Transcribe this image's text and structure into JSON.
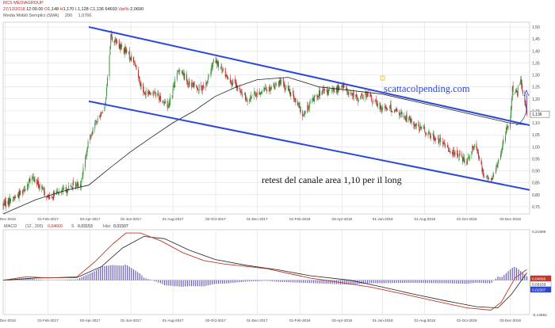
{
  "header": {
    "symbol": "RCS MEDIAGROUP",
    "date": "27/12/2018",
    "time": "12:00.00",
    "open_label": "O",
    "open": "1,148",
    "high_label": "H",
    "high": "1,170",
    "low_label": "L",
    "low": "1,128",
    "close_label": "C",
    "close": "1,136",
    "volume": "64693",
    "var_label": "Var%",
    "var": "-2,0690",
    "sma_label": "Media Mobili Semplici (SMA)",
    "sma_period": "200",
    "sma_value": "1,0766"
  },
  "annotations": {
    "watermark": "scattacolpending.com",
    "note": "retest del canale area 1,10 per il long"
  },
  "colors": {
    "up_candle": "#2e8b2e",
    "down_candle": "#b22222",
    "sma": "#222222",
    "channel": "#2c48d8",
    "macd_line": "#c0392b",
    "signal_line": "#222222",
    "histogram": "#6a5fc0",
    "grid": "#d9d9d9",
    "price_label_bg": "#ffffff"
  },
  "chart_data": [
    {
      "type": "candlestick",
      "title": "RCS MEDIAGROUP",
      "ylim": [
        0.72,
        1.52
      ],
      "yticks": [
        0.75,
        0.8,
        0.85,
        0.9,
        0.95,
        1.0,
        1.05,
        1.1,
        1.15,
        1.2,
        1.25,
        1.3,
        1.35,
        1.4,
        1.45,
        1.5
      ],
      "ytick_labels": [
        "0,75",
        "0,80",
        "0,85",
        "0,90",
        "0,95",
        "1,00",
        "1,05",
        "1,10",
        "1,15",
        "1,20",
        "1,25",
        "1,30",
        "1,35",
        "1,40",
        "1,45",
        "1,50"
      ],
      "xticks": [
        "01-Dec-2016",
        "01-Feb-2017",
        "03-Apr-2017",
        "01-Jun-2017",
        "01-Aug-2017",
        "02-Oct-2017",
        "01-Dec-2017",
        "01-Feb-2018",
        "03-Apr-2018",
        "01-Jun-2018",
        "01-Aug-2018",
        "01-Oct-2018",
        "03-Dec-2018"
      ],
      "last_price_label": "1,136",
      "x_range": [
        "2016-11-28",
        "2018-12-31"
      ],
      "anchors": [
        [
          "2016-11-28",
          0.76
        ],
        [
          "2016-12-20",
          0.8
        ],
        [
          "2017-01-10",
          0.87
        ],
        [
          "2017-02-01",
          0.79
        ],
        [
          "2017-02-25",
          0.82
        ],
        [
          "2017-03-20",
          0.85
        ],
        [
          "2017-04-03",
          1.05
        ],
        [
          "2017-04-25",
          1.18
        ],
        [
          "2017-05-03",
          1.46
        ],
        [
          "2017-05-20",
          1.41
        ],
        [
          "2017-06-05",
          1.36
        ],
        [
          "2017-06-20",
          1.22
        ],
        [
          "2017-07-05",
          1.23
        ],
        [
          "2017-07-25",
          1.17
        ],
        [
          "2017-08-10",
          1.33
        ],
        [
          "2017-08-25",
          1.26
        ],
        [
          "2017-09-15",
          1.24
        ],
        [
          "2017-09-30",
          1.36
        ],
        [
          "2017-10-20",
          1.29
        ],
        [
          "2017-11-15",
          1.2
        ],
        [
          "2017-12-15",
          1.24
        ],
        [
          "2018-01-05",
          1.27
        ],
        [
          "2018-01-25",
          1.2
        ],
        [
          "2018-02-05",
          1.13
        ],
        [
          "2018-02-25",
          1.22
        ],
        [
          "2018-03-15",
          1.23
        ],
        [
          "2018-04-05",
          1.25
        ],
        [
          "2018-04-25",
          1.2
        ],
        [
          "2018-05-10",
          1.22
        ],
        [
          "2018-05-25",
          1.17
        ],
        [
          "2018-06-15",
          1.16
        ],
        [
          "2018-07-05",
          1.12
        ],
        [
          "2018-07-25",
          1.08
        ],
        [
          "2018-08-15",
          1.04
        ],
        [
          "2018-09-01",
          1.0
        ],
        [
          "2018-09-20",
          0.96
        ],
        [
          "2018-10-01",
          0.94
        ],
        [
          "2018-10-12",
          1.02
        ],
        [
          "2018-10-25",
          0.89
        ],
        [
          "2018-11-05",
          0.86
        ],
        [
          "2018-11-15",
          0.93
        ],
        [
          "2018-11-25",
          1.05
        ],
        [
          "2018-12-03",
          1.12
        ],
        [
          "2018-12-06",
          1.25
        ],
        [
          "2018-12-12",
          1.22
        ],
        [
          "2018-12-18",
          1.27
        ],
        [
          "2018-12-27",
          1.136
        ]
      ],
      "sma_200": [
        [
          "2016-11-28",
          0.72
        ],
        [
          "2017-01-15",
          0.78
        ],
        [
          "2017-03-01",
          0.82
        ],
        [
          "2017-04-01",
          0.84
        ],
        [
          "2017-05-01",
          0.91
        ],
        [
          "2017-06-01",
          0.98
        ],
        [
          "2017-07-01",
          1.04
        ],
        [
          "2017-08-01",
          1.1
        ],
        [
          "2017-09-01",
          1.15
        ],
        [
          "2017-10-01",
          1.21
        ],
        [
          "2017-11-01",
          1.25
        ],
        [
          "2017-12-01",
          1.28
        ],
        [
          "2018-01-15",
          1.29
        ],
        [
          "2018-03-01",
          1.25
        ],
        [
          "2018-04-01",
          1.24
        ],
        [
          "2018-05-01",
          1.23
        ],
        [
          "2018-06-01",
          1.22
        ],
        [
          "2018-07-01",
          1.2
        ],
        [
          "2018-08-01",
          1.18
        ],
        [
          "2018-09-01",
          1.16
        ],
        [
          "2018-10-01",
          1.14
        ],
        [
          "2018-11-01",
          1.12
        ],
        [
          "2018-12-01",
          1.1
        ],
        [
          "2018-12-31",
          1.09
        ]
      ],
      "channel_upper": [
        [
          "2017-04-01",
          1.5
        ],
        [
          "2018-12-31",
          1.09
        ]
      ],
      "channel_lower": [
        [
          "2017-04-01",
          1.19
        ],
        [
          "2018-12-31",
          0.82
        ]
      ]
    },
    {
      "type": "line",
      "title": "MACD",
      "params": "(12 , 200)",
      "ylim": [
        -0.149,
        0.219
      ],
      "ytick_labels": [
        "0,21909",
        "-0,14851"
      ],
      "series": [
        {
          "name": "0,04660",
          "value_label": "0,04660",
          "role": "macd"
        },
        {
          "name": "S",
          "value_label": "0,03153",
          "role": "signal"
        },
        {
          "name": "Hist",
          "value_label": "0,01507",
          "role": "histogram"
        }
      ],
      "macd_points": [
        [
          "2016-11-28",
          0.0
        ],
        [
          "2017-01-01",
          0.015
        ],
        [
          "2017-02-01",
          0.01
        ],
        [
          "2017-03-15",
          0.015
        ],
        [
          "2017-04-10",
          0.08
        ],
        [
          "2017-05-05",
          0.155
        ],
        [
          "2017-05-25",
          0.205
        ],
        [
          "2017-06-15",
          0.205
        ],
        [
          "2017-07-15",
          0.17
        ],
        [
          "2017-08-15",
          0.12
        ],
        [
          "2017-09-15",
          0.085
        ],
        [
          "2017-10-15",
          0.07
        ],
        [
          "2017-11-15",
          0.06
        ],
        [
          "2017-12-15",
          0.05
        ],
        [
          "2018-01-15",
          0.03
        ],
        [
          "2018-02-15",
          0.01
        ],
        [
          "2018-04-01",
          -0.01
        ],
        [
          "2018-05-15",
          -0.03
        ],
        [
          "2018-07-01",
          -0.06
        ],
        [
          "2018-08-15",
          -0.09
        ],
        [
          "2018-10-01",
          -0.12
        ],
        [
          "2018-11-05",
          -0.13
        ],
        [
          "2018-11-20",
          -0.095
        ],
        [
          "2018-12-10",
          0.01
        ],
        [
          "2018-12-27",
          0.047
        ]
      ],
      "signal_points": [
        [
          "2016-11-28",
          0.0
        ],
        [
          "2017-01-15",
          0.01
        ],
        [
          "2017-03-15",
          0.012
        ],
        [
          "2017-04-20",
          0.06
        ],
        [
          "2017-05-20",
          0.14
        ],
        [
          "2017-06-20",
          0.19
        ],
        [
          "2017-07-20",
          0.18
        ],
        [
          "2017-08-25",
          0.13
        ],
        [
          "2017-10-01",
          0.09
        ],
        [
          "2017-11-15",
          0.065
        ],
        [
          "2018-01-01",
          0.045
        ],
        [
          "2018-02-15",
          0.02
        ],
        [
          "2018-04-15",
          0.0
        ],
        [
          "2018-06-01",
          -0.03
        ],
        [
          "2018-07-15",
          -0.06
        ],
        [
          "2018-09-01",
          -0.09
        ],
        [
          "2018-10-15",
          -0.115
        ],
        [
          "2018-11-15",
          -0.12
        ],
        [
          "2018-12-05",
          -0.06
        ],
        [
          "2018-12-27",
          0.032
        ]
      ]
    }
  ]
}
